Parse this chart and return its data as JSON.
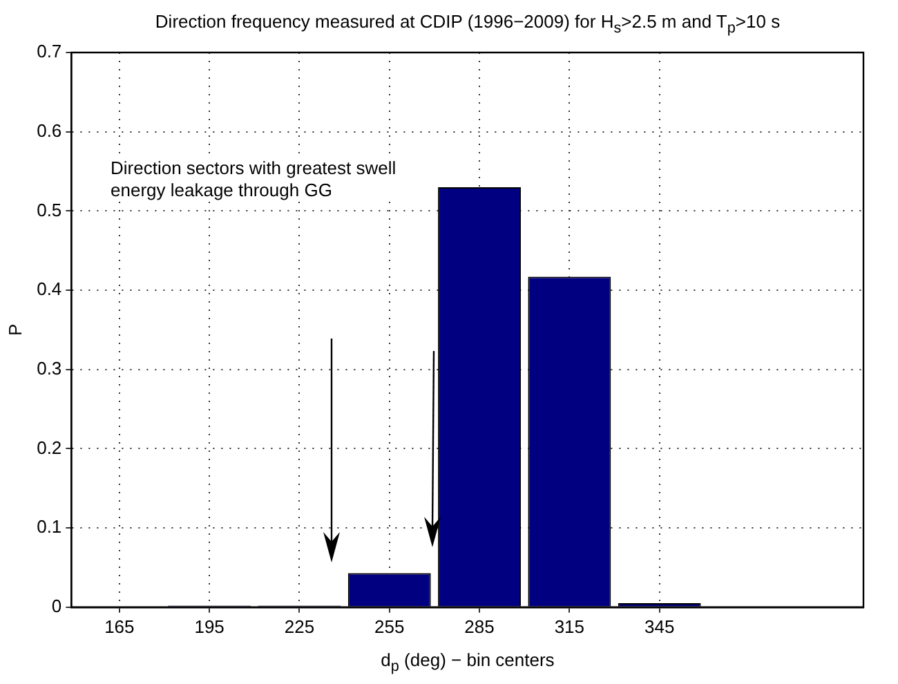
{
  "chart_data": {
    "type": "bar",
    "title": "Direction frequency measured at CDIP (1996−2009) for H$_{s}$>2.5 m and T$_{p}$>10 s",
    "xlabel": "d$_{p}$ (deg) − bin centers",
    "ylabel": "P",
    "x": [
      165,
      195,
      225,
      255,
      285,
      315,
      345
    ],
    "values": [
      0,
      0.002,
      0.002,
      0.043,
      0.53,
      0.417,
      0.005
    ],
    "color": "#000080",
    "xlim": [
      149,
      413
    ],
    "xticks": [
      165,
      195,
      225,
      255,
      285,
      315,
      345
    ],
    "ylim": [
      0,
      0.7
    ],
    "yticks": [
      0,
      0.1,
      0.2,
      0.3,
      0.4,
      0.5,
      0.6,
      0.7
    ],
    "grid": true,
    "annotations": [
      "Direction sectors with greatest swell energy leakage through GG"
    ]
  }
}
